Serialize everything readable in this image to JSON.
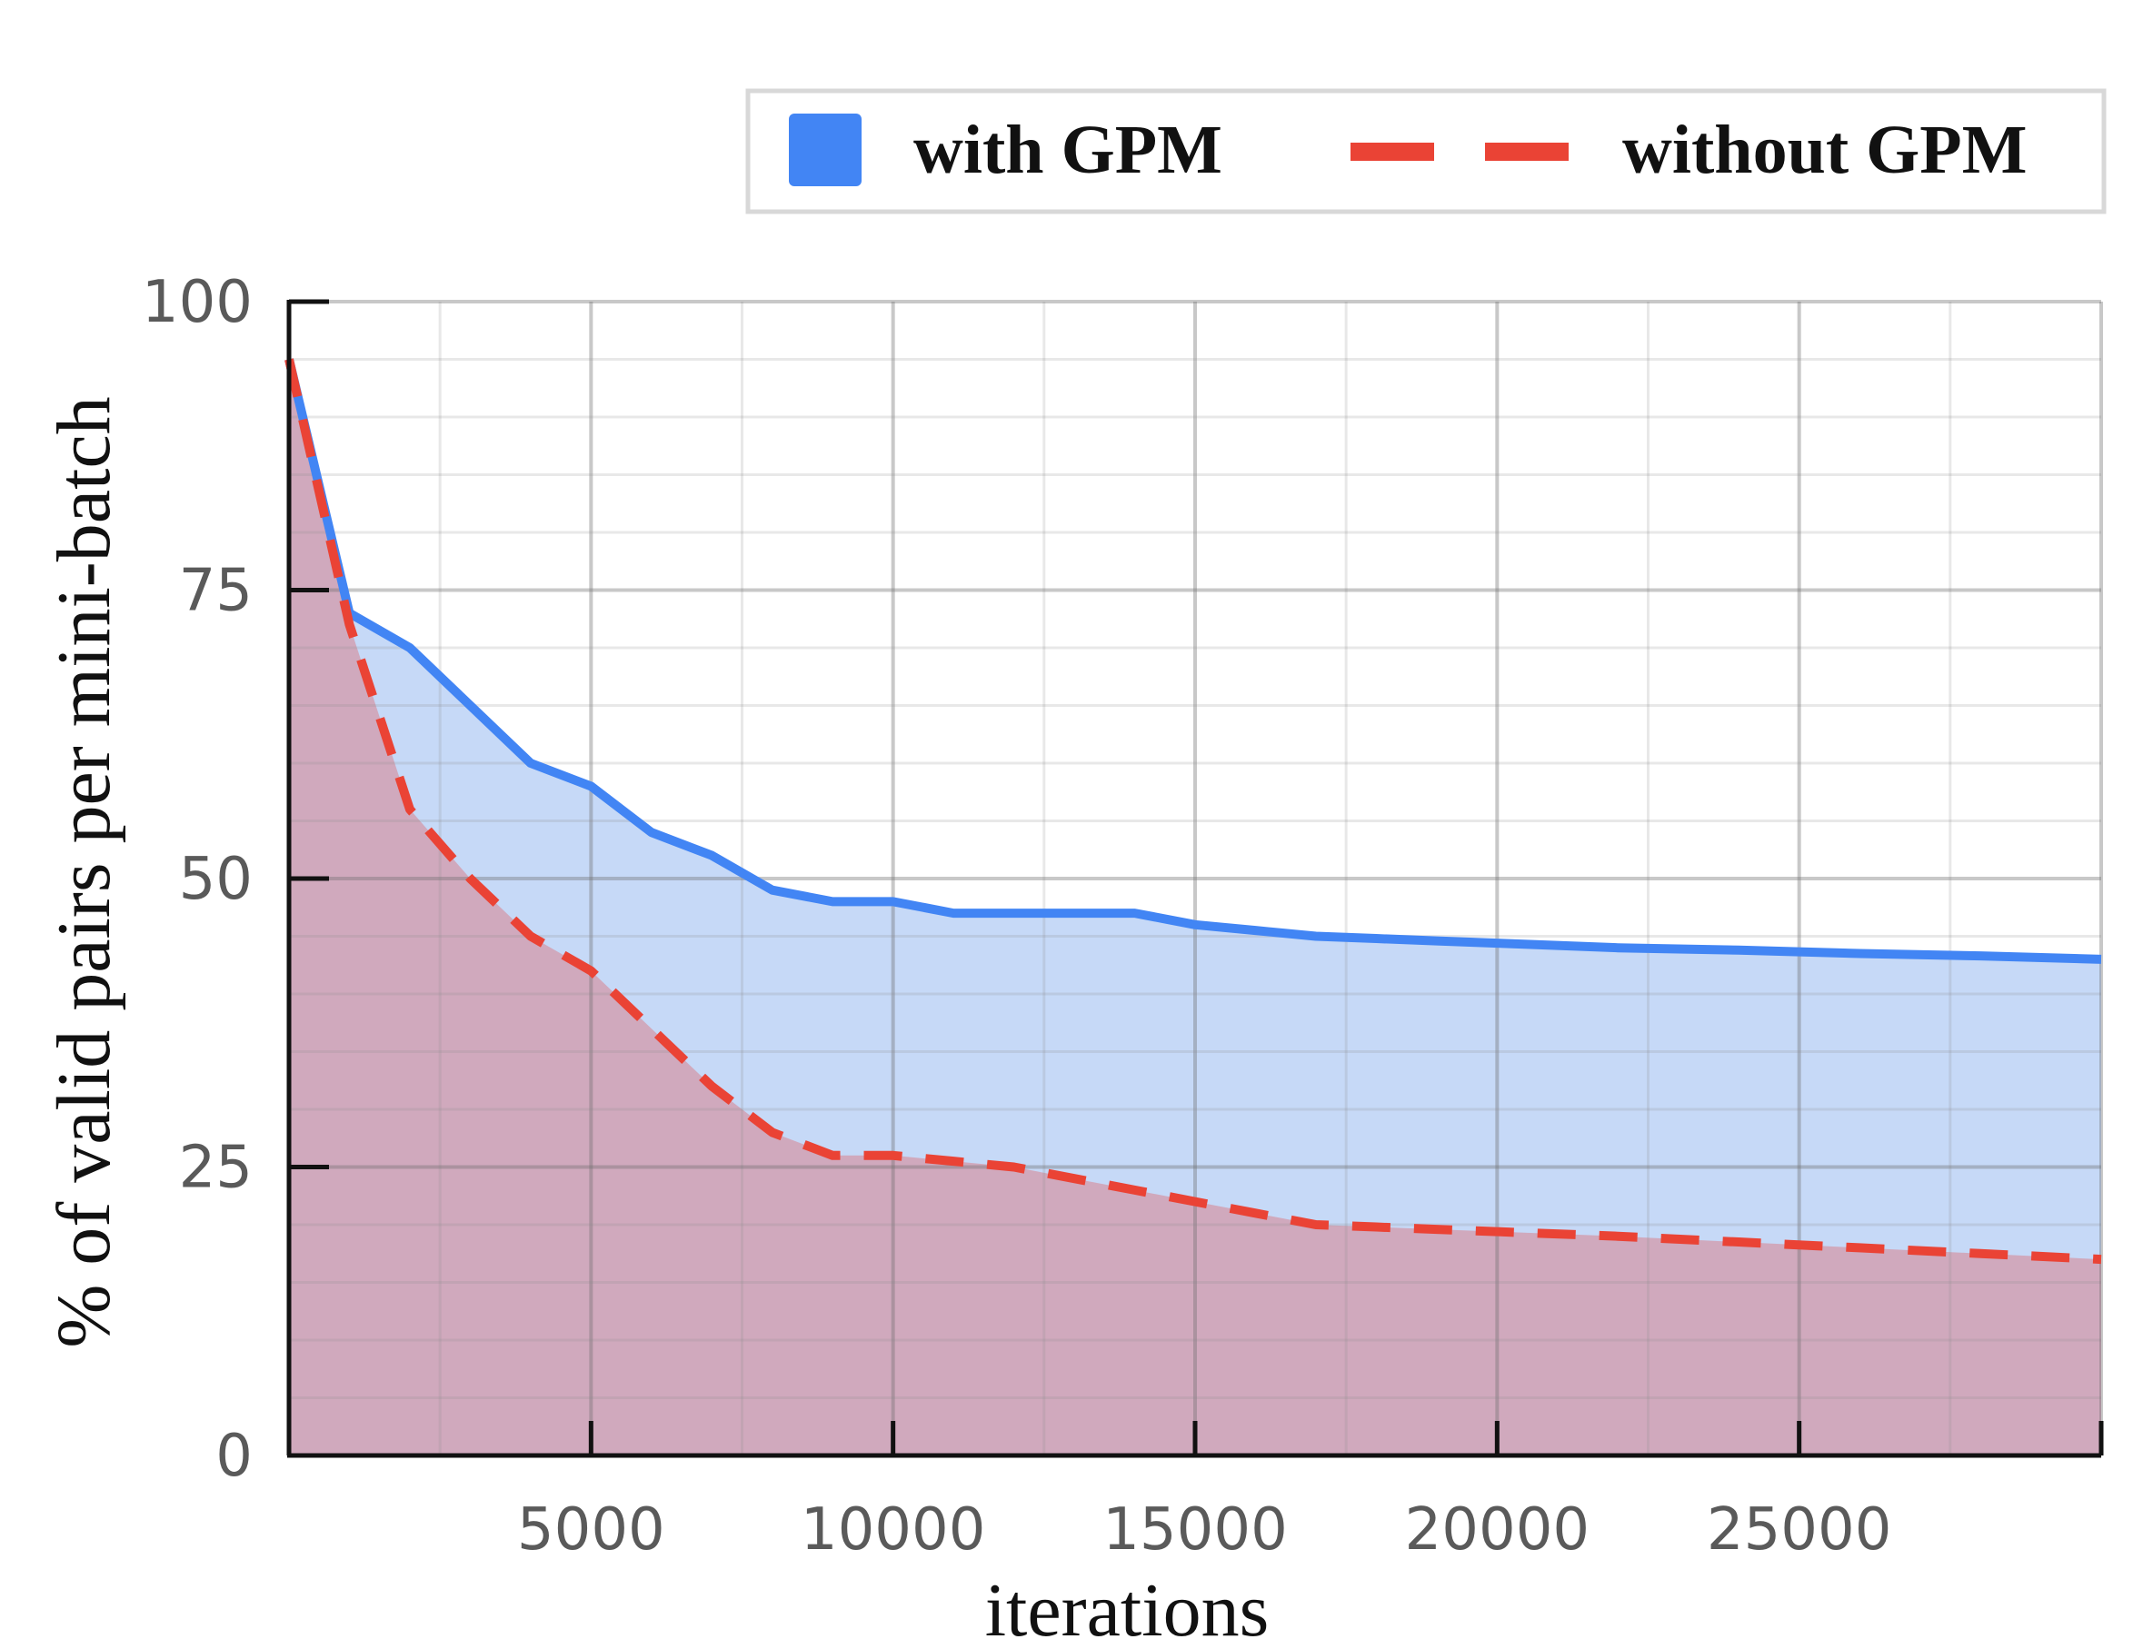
{
  "chart_data": {
    "type": "area",
    "xlabel": "iterations",
    "ylabel": "% of valid pairs per mini-batch",
    "xlim": [
      0,
      30000
    ],
    "ylim": [
      0,
      100
    ],
    "xticks": [
      5000,
      10000,
      15000,
      20000,
      25000
    ],
    "xtick_labels": [
      "5000",
      "10000",
      "15000",
      "20000",
      "25000"
    ],
    "yticks": [
      0,
      25,
      50,
      75,
      100
    ],
    "ytick_labels": [
      "0",
      "25",
      "50",
      "75",
      "100"
    ],
    "grid": true,
    "legend_position": "top-right",
    "series": [
      {
        "name": "with GPM",
        "color": "#4285f4",
        "fill_color": "#c6d9f7",
        "line_style": "solid",
        "x": [
          0,
          1000,
          2000,
          3000,
          4000,
          5000,
          6000,
          7000,
          8000,
          9000,
          10000,
          11000,
          12000,
          13000,
          14000,
          15000,
          16000,
          17000,
          18000,
          19000,
          20000,
          22000,
          24000,
          26000,
          28000,
          30000
        ],
        "y": [
          95,
          73,
          70,
          65,
          60,
          58,
          54,
          52,
          49,
          48,
          48,
          47,
          47,
          47,
          47,
          46,
          45.5,
          45,
          44.8,
          44.6,
          44.4,
          44,
          43.8,
          43.5,
          43.3,
          43
        ]
      },
      {
        "name": "without GPM",
        "color": "#ea4335",
        "fill_color": "#d0a9bd",
        "line_style": "dashed",
        "x": [
          0,
          1000,
          2000,
          3000,
          4000,
          5000,
          6000,
          7000,
          8000,
          9000,
          10000,
          11000,
          12000,
          13000,
          14000,
          15000,
          16000,
          17000,
          18000,
          19000,
          20000,
          22000,
          24000,
          26000,
          28000,
          30000
        ],
        "y": [
          95,
          72,
          56,
          50,
          45,
          42,
          37,
          32,
          28,
          26,
          26,
          25.5,
          25,
          24,
          23,
          22,
          21,
          20,
          19.8,
          19.6,
          19.4,
          19,
          18.5,
          18,
          17.5,
          17
        ]
      }
    ]
  }
}
